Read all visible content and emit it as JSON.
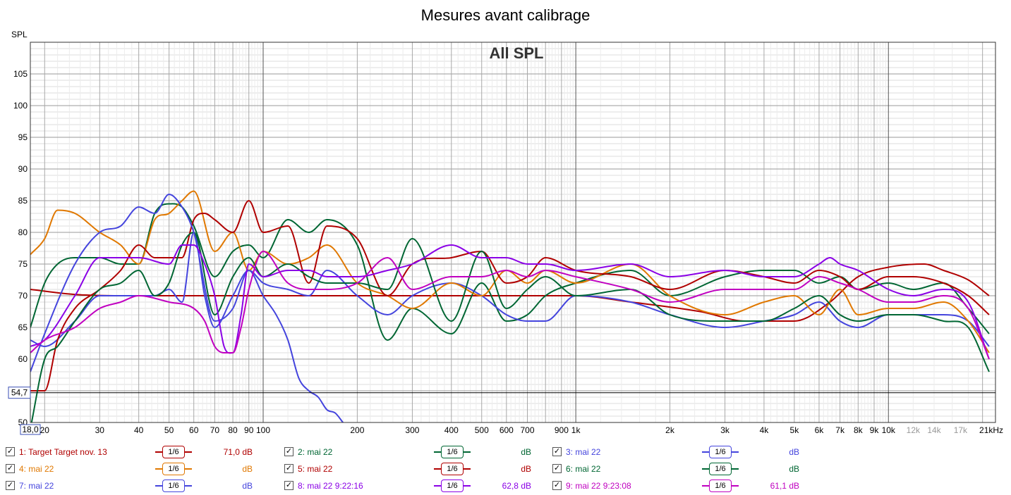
{
  "title": "Mesures avant calibrage",
  "ylabel": "SPL",
  "colors": {
    "c1": "#b00000",
    "c2": "#006633",
    "c3": "#4444dd",
    "c4": "#e07800",
    "c5": "#b00000",
    "c6": "#006633",
    "c7": "#4444dd",
    "c8": "#8a00e6",
    "c9": "#c000c0"
  },
  "chart_data": {
    "type": "line",
    "title": "All SPL",
    "xlabel": "",
    "ylabel": "SPL",
    "xscale": "log",
    "xlim": [
      18,
      22000
    ],
    "ylim": [
      50,
      110
    ],
    "grid": true,
    "y_ticks": [
      50,
      55,
      60,
      65,
      70,
      75,
      80,
      85,
      90,
      95,
      100,
      105
    ],
    "x_ticks": [
      {
        "v": 18,
        "label": "18,0",
        "boxed": true
      },
      {
        "v": 20,
        "label": "20"
      },
      {
        "v": 30,
        "label": "30"
      },
      {
        "v": 40,
        "label": "40"
      },
      {
        "v": 50,
        "label": "50"
      },
      {
        "v": 60,
        "label": "60"
      },
      {
        "v": 70,
        "label": "70"
      },
      {
        "v": 80,
        "label": "80"
      },
      {
        "v": 90,
        "label": "90"
      },
      {
        "v": 100,
        "label": "100"
      },
      {
        "v": 200,
        "label": "200"
      },
      {
        "v": 300,
        "label": "300"
      },
      {
        "v": 400,
        "label": "400"
      },
      {
        "v": 500,
        "label": "500"
      },
      {
        "v": 600,
        "label": "600"
      },
      {
        "v": 700,
        "label": "700"
      },
      {
        "v": 900,
        "label": "900"
      },
      {
        "v": 1000,
        "label": "1k"
      },
      {
        "v": 2000,
        "label": "2k"
      },
      {
        "v": 3000,
        "label": "3k"
      },
      {
        "v": 4000,
        "label": "4k"
      },
      {
        "v": 5000,
        "label": "5k"
      },
      {
        "v": 6000,
        "label": "6k"
      },
      {
        "v": 7000,
        "label": "7k"
      },
      {
        "v": 8000,
        "label": "8k"
      },
      {
        "v": 9000,
        "label": "9k"
      },
      {
        "v": 10000,
        "label": "10k"
      },
      {
        "v": 12000,
        "label": "12k",
        "muted": true
      },
      {
        "v": 14000,
        "label": "14k",
        "muted": true
      },
      {
        "v": 17000,
        "label": "17k",
        "muted": true
      },
      {
        "v": 21000,
        "label": "21kHz"
      }
    ],
    "marker_y": {
      "value": 54.7,
      "label": "54,7"
    },
    "series": [
      {
        "id": 1,
        "name": "Target Target nov. 13",
        "color": "#b00000",
        "x": [
          18,
          25,
          40,
          100,
          300,
          1000,
          1500,
          2500,
          3500,
          5000,
          6500,
          8000,
          10000,
          13000,
          15000,
          18000,
          21000
        ],
        "y": [
          71,
          70.2,
          70,
          70,
          70,
          70,
          69,
          67.5,
          66,
          66,
          69,
          73,
          74.5,
          75,
          74,
          72.5,
          70
        ]
      },
      {
        "id": 2,
        "name": "mai 22",
        "color": "#006633",
        "x": [
          18,
          20,
          22,
          25,
          30,
          35,
          40,
          45,
          50,
          55,
          60,
          70,
          80,
          90,
          100,
          120,
          140,
          160,
          200,
          250,
          300,
          400,
          500,
          600,
          700,
          800,
          1000,
          1500,
          2000,
          3000,
          4000,
          5000,
          6000,
          7000,
          8000,
          10000,
          12000,
          15000,
          18000,
          21000
        ],
        "y": [
          65,
          72,
          75,
          76,
          76,
          75,
          75,
          83,
          84.5,
          84,
          81,
          73,
          77,
          78,
          76,
          82,
          80,
          82,
          78,
          63,
          68,
          64,
          72,
          66,
          67,
          70,
          72,
          74,
          70,
          73,
          74,
          74,
          72,
          73,
          71,
          72,
          71,
          72,
          68,
          64
        ]
      },
      {
        "id": 3,
        "name": "mai 22",
        "color": "#4444dd",
        "x": [
          18,
          20,
          25,
          30,
          40,
          45,
          50,
          55,
          60,
          65,
          70,
          80,
          90,
          100,
          120,
          140,
          160,
          200,
          250,
          300,
          400,
          500,
          600,
          700,
          800,
          1000,
          1500,
          2000,
          3000,
          4000,
          5000,
          6000,
          7000,
          8000,
          10000,
          12000,
          15000,
          18000,
          21000
        ],
        "y": [
          63,
          62,
          66,
          70,
          70,
          70,
          71,
          69,
          80,
          70,
          65,
          70,
          74,
          72,
          71,
          70,
          74,
          70,
          67,
          70,
          72,
          70,
          67,
          66,
          66,
          70,
          69,
          67,
          65,
          66,
          67,
          69,
          66,
          65,
          67,
          67,
          67,
          66,
          62
        ]
      },
      {
        "id": 4,
        "name": "mai 22",
        "color": "#e07800",
        "x": [
          18,
          20,
          22,
          25,
          30,
          35,
          40,
          45,
          50,
          55,
          60,
          70,
          80,
          90,
          100,
          120,
          140,
          160,
          200,
          250,
          300,
          400,
          500,
          600,
          700,
          800,
          1000,
          1500,
          2000,
          3000,
          4000,
          5000,
          6000,
          7000,
          8000,
          10000,
          12000,
          15000,
          18000,
          21000
        ],
        "y": [
          76.5,
          79,
          83.5,
          83,
          80,
          78,
          75,
          82,
          83,
          85,
          86.5,
          77,
          80,
          74,
          77,
          75,
          76,
          78,
          72,
          70,
          68,
          72,
          70,
          74,
          72,
          74,
          72,
          75,
          70,
          67,
          69,
          70,
          67,
          71,
          67,
          68,
          68,
          69,
          66,
          61
        ]
      },
      {
        "id": 5,
        "name": "mai 22",
        "color": "#b00000",
        "x": [
          18,
          20,
          22,
          25,
          30,
          35,
          40,
          45,
          50,
          55,
          60,
          65,
          70,
          80,
          90,
          100,
          120,
          140,
          160,
          200,
          250,
          300,
          400,
          500,
          600,
          700,
          800,
          1000,
          1500,
          2000,
          3000,
          4000,
          5000,
          6000,
          7000,
          8000,
          10000,
          12000,
          15000,
          18000,
          21000
        ],
        "y": [
          55,
          55,
          63,
          68,
          71,
          74,
          78,
          76,
          76,
          76,
          82,
          83,
          82,
          80,
          85,
          80,
          81,
          72,
          81,
          79,
          70,
          75,
          76,
          77,
          72,
          73,
          76,
          74,
          73,
          71,
          74,
          73,
          72,
          74,
          73,
          71,
          73,
          73,
          72,
          70,
          67
        ]
      },
      {
        "id": 6,
        "name": "mai 22",
        "color": "#006633",
        "x": [
          18,
          20,
          22,
          25,
          30,
          35,
          40,
          45,
          50,
          55,
          60,
          70,
          80,
          90,
          100,
          120,
          140,
          160,
          200,
          250,
          300,
          400,
          500,
          600,
          700,
          800,
          1000,
          1500,
          2000,
          3000,
          4000,
          5000,
          6000,
          7000,
          8000,
          10000,
          12000,
          15000,
          18000,
          21000
        ],
        "y": [
          49,
          60,
          62,
          66,
          71,
          72,
          74,
          70,
          72,
          78,
          80,
          67,
          73,
          76,
          73,
          75,
          73,
          72,
          72,
          71,
          79,
          66,
          77,
          68,
          71,
          73,
          70,
          71,
          67,
          66,
          66,
          68,
          70,
          67,
          66,
          67,
          67,
          66,
          65,
          58
        ]
      },
      {
        "id": 7,
        "name": "mai 22",
        "color": "#4444dd",
        "x": [
          18,
          20,
          25,
          30,
          35,
          40,
          45,
          50,
          55,
          60,
          70,
          80,
          90,
          100,
          110,
          120,
          130,
          140,
          150,
          160,
          170,
          180
        ],
        "y": [
          58,
          64,
          75,
          80,
          81,
          84,
          83,
          86,
          84,
          80,
          66,
          68,
          74,
          70,
          67,
          63,
          57,
          55,
          54,
          52,
          51.5,
          50
        ]
      },
      {
        "id": 8,
        "name": "mai 22 9:22:16",
        "value": "62,8 dB",
        "color": "#8a00e6",
        "x": [
          18,
          20,
          25,
          30,
          40,
          50,
          55,
          60,
          65,
          70,
          75,
          80,
          85,
          90,
          100,
          120,
          140,
          160,
          200,
          250,
          300,
          400,
          500,
          600,
          700,
          800,
          1000,
          1500,
          2000,
          3000,
          4000,
          5000,
          6000,
          6500,
          7000,
          8000,
          10000,
          12000,
          15000,
          18000,
          21000
        ],
        "y": [
          62,
          63,
          70,
          76,
          76,
          75,
          78,
          78,
          75,
          70,
          62,
          61,
          67,
          75,
          73,
          74,
          74,
          73,
          73,
          74,
          75,
          78,
          76,
          76,
          75,
          75,
          74,
          75,
          73,
          74,
          73,
          73,
          75,
          76,
          75,
          74,
          71,
          70,
          71,
          69,
          60
        ]
      },
      {
        "id": 9,
        "name": "mai 22 9:23:08",
        "value": "61,1 dB",
        "color": "#c000c0",
        "x": [
          18,
          20,
          25,
          30,
          35,
          40,
          50,
          60,
          65,
          70,
          75,
          80,
          85,
          90,
          100,
          120,
          140,
          160,
          200,
          250,
          300,
          400,
          500,
          600,
          700,
          800,
          1000,
          1500,
          2000,
          3000,
          4000,
          5000,
          6000,
          7000,
          8000,
          10000,
          12000,
          15000,
          18000,
          21000
        ],
        "y": [
          61,
          63,
          65,
          68,
          69,
          70,
          69,
          68,
          66,
          62,
          61,
          61,
          65,
          71,
          77,
          72,
          71,
          71,
          72,
          76,
          71,
          73,
          73,
          74,
          73,
          74,
          73,
          71,
          69,
          71,
          71,
          71,
          73,
          72,
          71,
          69,
          69,
          70,
          68,
          60
        ]
      }
    ]
  },
  "legend": {
    "smoothing_label": "1/6",
    "entries": [
      {
        "id": 1,
        "label": "1: Target Target nov. 13",
        "value": "71,0 dB",
        "color": "#b00000",
        "checked": "✓"
      },
      {
        "id": 2,
        "label": "2: mai 22",
        "value": "dB",
        "color": "#006633",
        "checked": "✓"
      },
      {
        "id": 3,
        "label": "3: mai 22",
        "value": "dB",
        "color": "#4444dd",
        "checked": "✓"
      },
      {
        "id": 4,
        "label": "4: mai 22",
        "value": "dB",
        "color": "#e07800",
        "checked": "✓"
      },
      {
        "id": 5,
        "label": "5: mai 22",
        "value": "dB",
        "color": "#b00000",
        "checked": "✓"
      },
      {
        "id": 6,
        "label": "6: mai 22",
        "value": "dB",
        "color": "#006633",
        "checked": "✓"
      },
      {
        "id": 7,
        "label": "7: mai 22",
        "value": "dB",
        "color": "#4444dd",
        "checked": "✓"
      },
      {
        "id": 8,
        "label": "8: mai 22 9:22:16",
        "value": "62,8 dB",
        "color": "#8a00e6",
        "checked": "✓"
      },
      {
        "id": 9,
        "label": "9: mai 22 9:23:08",
        "value": "61,1 dB",
        "color": "#c000c0",
        "checked": "✓"
      }
    ]
  }
}
